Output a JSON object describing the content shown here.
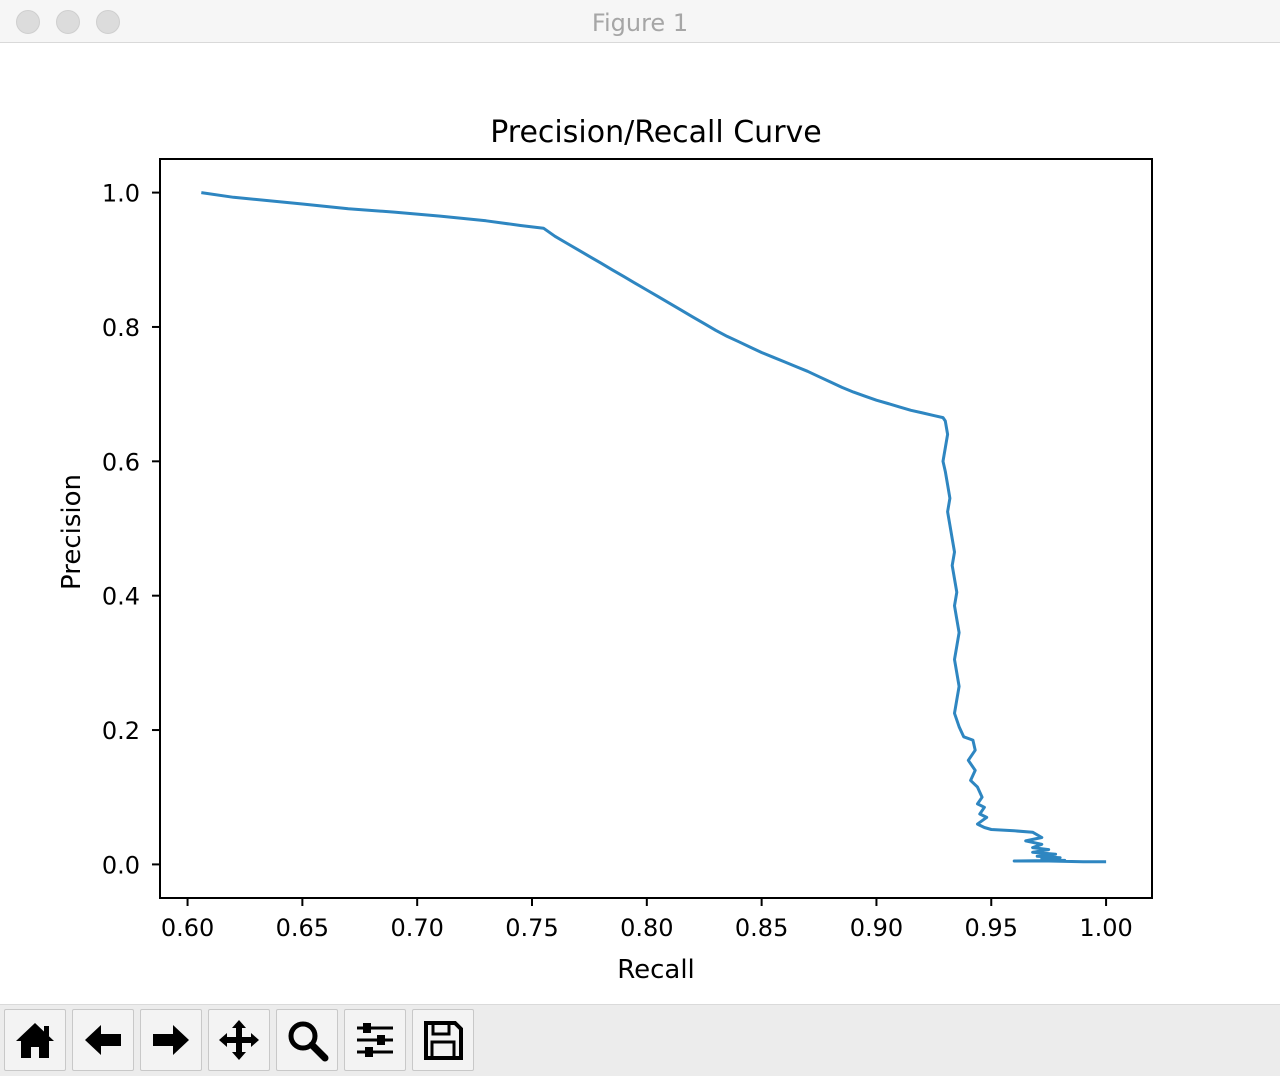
{
  "window": {
    "title": "Figure 1"
  },
  "toolbar": {
    "buttons": [
      {
        "name": "home-button",
        "icon": "home-icon"
      },
      {
        "name": "back-button",
        "icon": "arrow-left-icon"
      },
      {
        "name": "forward-button",
        "icon": "arrow-right-icon"
      },
      {
        "name": "pan-button",
        "icon": "move-icon"
      },
      {
        "name": "zoom-button",
        "icon": "magnifier-icon"
      },
      {
        "name": "configure-subplots-button",
        "icon": "sliders-icon"
      },
      {
        "name": "save-button",
        "icon": "floppy-disk-icon"
      }
    ]
  },
  "chart_data": {
    "type": "line",
    "title": "Precision/Recall Curve",
    "xlabel": "Recall",
    "ylabel": "Precision",
    "xlim": [
      0.588,
      1.02
    ],
    "ylim": [
      -0.05,
      1.05
    ],
    "xticks": [
      "0.60",
      "0.65",
      "0.70",
      "0.75",
      "0.80",
      "0.85",
      "0.90",
      "0.95",
      "1.00"
    ],
    "yticks": [
      "0.0",
      "0.2",
      "0.4",
      "0.6",
      "0.8",
      "1.0"
    ],
    "grid": false,
    "line_color": "#2e86c1",
    "series": [
      {
        "name": "",
        "x": [
          0.606,
          0.62,
          0.65,
          0.67,
          0.69,
          0.71,
          0.73,
          0.745,
          0.755,
          0.76,
          0.765,
          0.77,
          0.775,
          0.78,
          0.785,
          0.79,
          0.795,
          0.8,
          0.805,
          0.81,
          0.815,
          0.82,
          0.825,
          0.83,
          0.835,
          0.84,
          0.845,
          0.85,
          0.855,
          0.86,
          0.865,
          0.87,
          0.875,
          0.88,
          0.885,
          0.89,
          0.895,
          0.9,
          0.905,
          0.91,
          0.915,
          0.92,
          0.925,
          0.929,
          0.93,
          0.931,
          0.93,
          0.929,
          0.93,
          0.931,
          0.932,
          0.931,
          0.932,
          0.933,
          0.934,
          0.933,
          0.934,
          0.935,
          0.934,
          0.935,
          0.936,
          0.935,
          0.934,
          0.935,
          0.936,
          0.935,
          0.934,
          0.936,
          0.938,
          0.942,
          0.943,
          0.94,
          0.943,
          0.941,
          0.944,
          0.946,
          0.944,
          0.947,
          0.945,
          0.948,
          0.946,
          0.944,
          0.947,
          0.95,
          0.96,
          0.968,
          0.972,
          0.965,
          0.972,
          0.968,
          0.975,
          0.968,
          0.978,
          0.97,
          0.98,
          0.972,
          0.982,
          0.96,
          0.975,
          0.99,
          1.0
        ],
        "y": [
          1.0,
          0.993,
          0.983,
          0.976,
          0.971,
          0.965,
          0.958,
          0.951,
          0.947,
          0.935,
          0.925,
          0.915,
          0.905,
          0.895,
          0.885,
          0.875,
          0.865,
          0.855,
          0.845,
          0.835,
          0.825,
          0.815,
          0.805,
          0.795,
          0.786,
          0.778,
          0.77,
          0.762,
          0.755,
          0.748,
          0.741,
          0.734,
          0.726,
          0.718,
          0.71,
          0.703,
          0.697,
          0.691,
          0.686,
          0.681,
          0.676,
          0.672,
          0.668,
          0.665,
          0.66,
          0.64,
          0.62,
          0.6,
          0.585,
          0.565,
          0.545,
          0.525,
          0.505,
          0.485,
          0.465,
          0.445,
          0.425,
          0.405,
          0.385,
          0.365,
          0.345,
          0.325,
          0.305,
          0.285,
          0.265,
          0.245,
          0.225,
          0.205,
          0.19,
          0.185,
          0.17,
          0.155,
          0.14,
          0.125,
          0.115,
          0.1,
          0.09,
          0.085,
          0.075,
          0.07,
          0.065,
          0.06,
          0.055,
          0.052,
          0.05,
          0.048,
          0.04,
          0.035,
          0.03,
          0.025,
          0.022,
          0.018,
          0.015,
          0.012,
          0.01,
          0.008,
          0.006,
          0.005,
          0.005,
          0.004,
          0.004
        ]
      }
    ]
  }
}
